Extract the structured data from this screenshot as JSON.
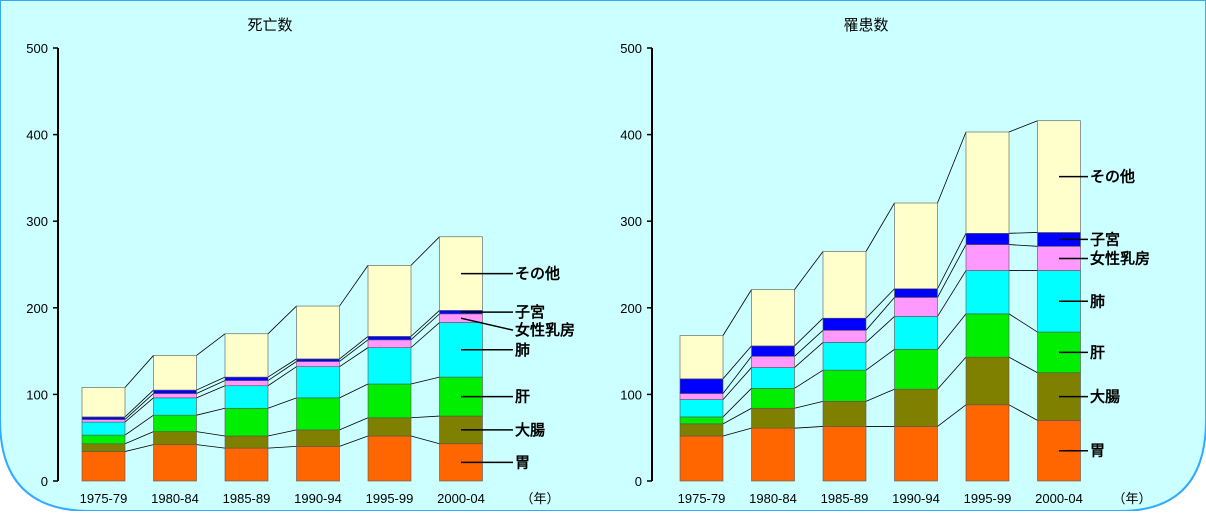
{
  "colors": {
    "background": "#ccffff",
    "border": "#33aaff",
    "胃": "#ff6600",
    "大腸": "#808000",
    "肝": "#00ee00",
    "肺": "#00ffff",
    "女性乳房": "#ff99ff",
    "子宮": "#0000ff",
    "その他": "#ffffcc"
  },
  "chart_data": [
    {
      "type": "bar",
      "stacked": true,
      "title": "死亡数",
      "categories": [
        "1975-79",
        "1980-84",
        "1985-89",
        "1990-94",
        "1995-99",
        "2000-04"
      ],
      "x_unit": "（年）",
      "ylim": [
        0,
        500
      ],
      "yticks": [
        0,
        100,
        200,
        300,
        400,
        500
      ],
      "series": [
        {
          "name": "胃",
          "values": [
            34,
            42,
            38,
            40,
            52,
            43
          ]
        },
        {
          "name": "大腸",
          "values": [
            9,
            15,
            14,
            19,
            21,
            32
          ]
        },
        {
          "name": "肝",
          "values": [
            10,
            19,
            32,
            37,
            39,
            45
          ]
        },
        {
          "name": "肺",
          "values": [
            15,
            20,
            26,
            36,
            42,
            63
          ]
        },
        {
          "name": "女性乳房",
          "values": [
            3,
            5,
            6,
            6,
            9,
            10
          ]
        },
        {
          "name": "子宮",
          "values": [
            3,
            4,
            4,
            3,
            4,
            4
          ]
        },
        {
          "name": "その他",
          "values": [
            34,
            40,
            50,
            61,
            82,
            85
          ]
        }
      ],
      "labels": [
        "その他",
        "子宮",
        "女性乳房",
        "肺",
        "肝",
        "大腸",
        "胃"
      ]
    },
    {
      "type": "bar",
      "stacked": true,
      "title": "罹患数",
      "categories": [
        "1975-79",
        "1980-84",
        "1985-89",
        "1990-94",
        "1995-99",
        "2000-04"
      ],
      "x_unit": "（年）",
      "ylim": [
        0,
        500
      ],
      "yticks": [
        0,
        100,
        200,
        300,
        400,
        500
      ],
      "series": [
        {
          "name": "胃",
          "values": [
            52,
            61,
            63,
            63,
            88,
            70
          ]
        },
        {
          "name": "大腸",
          "values": [
            14,
            23,
            29,
            43,
            55,
            55
          ]
        },
        {
          "name": "肝",
          "values": [
            8,
            23,
            36,
            46,
            50,
            47
          ]
        },
        {
          "name": "肺",
          "values": [
            20,
            24,
            32,
            38,
            50,
            71
          ]
        },
        {
          "name": "女性乳房",
          "values": [
            7,
            13,
            14,
            22,
            30,
            28
          ]
        },
        {
          "name": "子宮",
          "values": [
            17,
            12,
            14,
            10,
            13,
            16
          ]
        },
        {
          "name": "その他",
          "values": [
            50,
            65,
            77,
            99,
            117,
            129
          ]
        }
      ],
      "labels": [
        "その他",
        "子宮",
        "女性乳房",
        "肺",
        "肝",
        "大腸",
        "胃"
      ]
    }
  ]
}
